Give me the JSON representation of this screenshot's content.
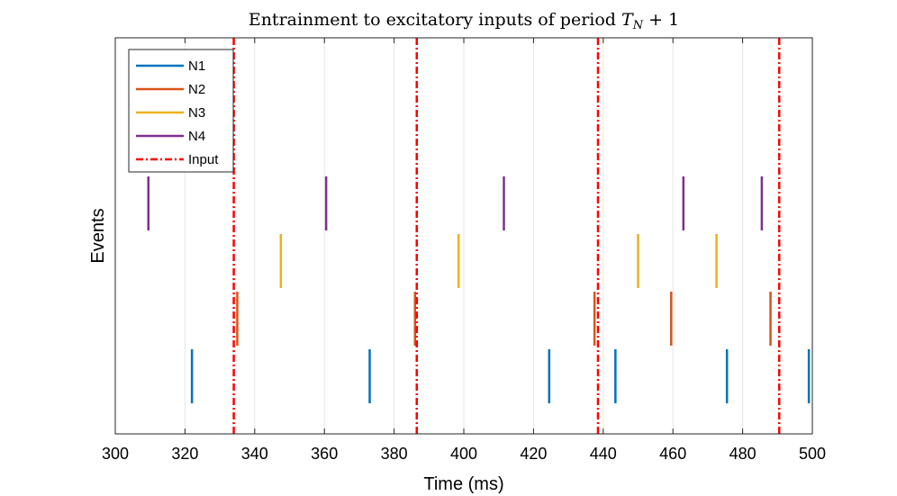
{
  "chart_data": {
    "type": "raster",
    "title": "Entrainment to excitatory inputs of period",
    "title_math": "T",
    "title_math_sub": "N",
    "title_math_rest": " + 1",
    "xlabel": "Time (ms)",
    "ylabel": "Events",
    "xlim": [
      300,
      500
    ],
    "xticks": [
      300,
      320,
      340,
      360,
      380,
      400,
      420,
      440,
      460,
      480,
      500
    ],
    "xtick_labels": [
      "300",
      "320",
      "340",
      "360",
      "380",
      "400",
      "420",
      "440",
      "460",
      "480",
      "500"
    ],
    "grid": "vertical",
    "legend_position": "top-left",
    "series": [
      {
        "name": "N1",
        "color": "#0072BD",
        "row": 1,
        "times": [
          322,
          373,
          424.5,
          443.5,
          475.5,
          499
        ]
      },
      {
        "name": "N2",
        "color": "#D95319",
        "row": 2,
        "times": [
          335,
          386,
          437.5,
          459.5,
          488
        ]
      },
      {
        "name": "N3",
        "color": "#EDB120",
        "row": 3,
        "times": [
          347.5,
          398.5,
          450,
          472.5
        ]
      },
      {
        "name": "N4",
        "color": "#7E2F8E",
        "row": 4,
        "times": [
          309.5,
          360.5,
          411.5,
          463,
          485.5
        ]
      }
    ],
    "input": {
      "name": "Input",
      "color": "#FF0000",
      "times": [
        334,
        386.5,
        438.5,
        490.5
      ]
    }
  }
}
